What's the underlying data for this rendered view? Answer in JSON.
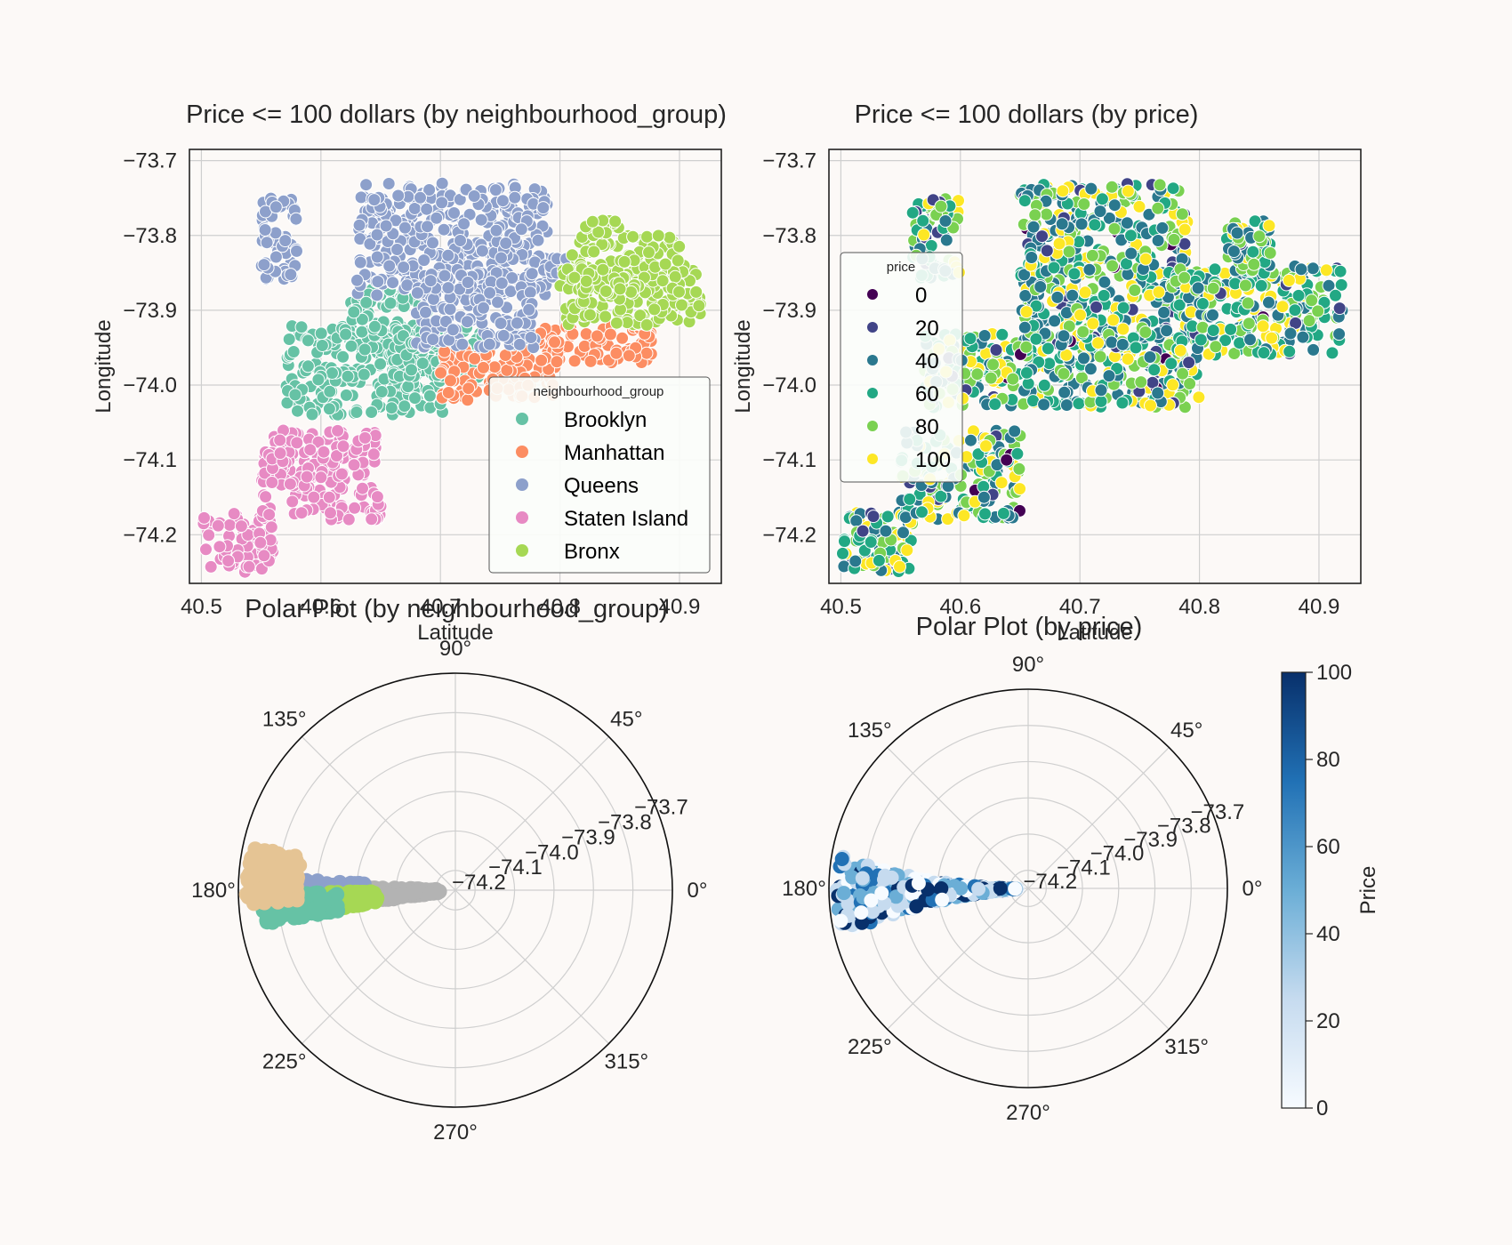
{
  "figure": {
    "background": "#fcf9f7"
  },
  "chart_data": [
    {
      "id": "scatter-by-group",
      "type": "scatter",
      "title": "Price <= 100 dollars (by neighbourhood_group)",
      "xlabel": "Latitude",
      "ylabel": "Longitude",
      "xlim": [
        40.49,
        40.935
      ],
      "ylim": [
        -74.265,
        -73.685
      ],
      "xticks": [
        "40.5",
        "40.6",
        "40.7",
        "40.8",
        "40.9"
      ],
      "yticks": [
        "−73.7",
        "−73.8",
        "−73.9",
        "−74.0",
        "−74.1",
        "−74.2"
      ],
      "xtick_values": [
        40.5,
        40.6,
        40.7,
        40.8,
        40.9
      ],
      "ytick_values": [
        -73.7,
        -73.8,
        -73.9,
        -74.0,
        -74.1,
        -74.2
      ],
      "grid": true,
      "legend": {
        "title": "neighbourhood_group",
        "placement": "lower-right"
      },
      "series": [
        {
          "name": "Brooklyn",
          "color": "#66c2a5",
          "regions": [
            [
              40.57,
              40.705,
              -74.04,
              -73.92
            ],
            [
              40.62,
              40.69,
              -73.96,
              -73.87
            ],
            [
              40.66,
              40.74,
              -73.99,
              -73.92
            ]
          ]
        },
        {
          "name": "Manhattan",
          "color": "#fc8d62",
          "regions": [
            [
              40.7,
              40.8,
              -74.02,
              -73.95
            ],
            [
              40.78,
              40.88,
              -73.97,
              -73.92
            ]
          ]
        },
        {
          "name": "Queens",
          "color": "#8da0cb",
          "regions": [
            [
              40.55,
              40.58,
              -73.86,
              -73.75
            ],
            [
              40.63,
              40.79,
              -73.88,
              -73.73
            ],
            [
              40.68,
              40.78,
              -73.95,
              -73.85
            ],
            [
              40.79,
              40.82,
              -73.87,
              -73.83
            ]
          ]
        },
        {
          "name": "Staten Island",
          "color": "#e78ac3",
          "regions": [
            [
              40.5,
              40.56,
              -74.25,
              -74.17
            ],
            [
              40.55,
              40.65,
              -74.18,
              -74.06
            ]
          ]
        },
        {
          "name": "Bronx",
          "color": "#a6d854",
          "regions": [
            [
              40.8,
              40.92,
              -73.92,
              -73.84
            ],
            [
              40.81,
              40.9,
              -73.88,
              -73.8
            ],
            [
              40.82,
              40.85,
              -73.8,
              -73.78
            ]
          ]
        }
      ]
    },
    {
      "id": "scatter-by-price",
      "type": "scatter",
      "title": "Price <= 100 dollars (by price)",
      "xlabel": "Latitude",
      "ylabel": "Longitude",
      "xlim": [
        40.49,
        40.935
      ],
      "ylim": [
        -74.265,
        -73.685
      ],
      "xticks": [
        "40.5",
        "40.6",
        "40.7",
        "40.8",
        "40.9"
      ],
      "yticks": [
        "−73.7",
        "−73.8",
        "−73.9",
        "−74.0",
        "−74.1",
        "−74.2"
      ],
      "xtick_values": [
        40.5,
        40.6,
        40.7,
        40.8,
        40.9
      ],
      "ytick_values": [
        -73.7,
        -73.8,
        -73.9,
        -74.0,
        -74.1,
        -74.2
      ],
      "grid": true,
      "legend": {
        "title": "price",
        "placement": "center-left",
        "entries": [
          {
            "label": "0",
            "color": "#440154"
          },
          {
            "label": "20",
            "color": "#414487"
          },
          {
            "label": "40",
            "color": "#2a788e"
          },
          {
            "label": "60",
            "color": "#22a884"
          },
          {
            "label": "80",
            "color": "#7ad151"
          },
          {
            "label": "100",
            "color": "#fde725"
          }
        ]
      },
      "palette": [
        "#440154",
        "#414487",
        "#2a788e",
        "#22a884",
        "#7ad151",
        "#fde725"
      ],
      "regions": [
        [
          40.5,
          40.56,
          -74.25,
          -74.17
        ],
        [
          40.55,
          40.65,
          -74.18,
          -74.06
        ],
        [
          40.57,
          40.8,
          -74.03,
          -73.93
        ],
        [
          40.65,
          40.79,
          -73.95,
          -73.73
        ],
        [
          40.56,
          40.6,
          -73.86,
          -73.75
        ],
        [
          40.78,
          40.92,
          -73.96,
          -73.84
        ],
        [
          40.82,
          40.86,
          -73.84,
          -73.78
        ]
      ]
    },
    {
      "id": "polar-by-group",
      "type": "scatter",
      "projection": "polar",
      "title": "Polar Plot (by neighbourhood_group)",
      "angle_ticks": [
        "0°",
        "45°",
        "90°",
        "135°",
        "180°",
        "225°",
        "270°",
        "315°"
      ],
      "radial_ticks": [
        "−74.2",
        "−74.1",
        "−74.0",
        "−73.9",
        "−73.8",
        "−73.7"
      ],
      "rlim": [
        -74.25,
        -73.7
      ],
      "series": [
        {
          "color": "#b3b3b3",
          "theta_deg": [
            178,
            188
          ],
          "r": [
            -74.21,
            -74.02
          ]
        },
        {
          "color": "#8da0cb",
          "theta_deg": [
            176,
            188
          ],
          "r": [
            -74.02,
            -73.81
          ]
        },
        {
          "color": "#a6d854",
          "theta_deg": [
            181,
            189
          ],
          "r": [
            -74.05,
            -73.93
          ]
        },
        {
          "color": "#66c2a5",
          "theta_deg": [
            181,
            190
          ],
          "r": [
            -73.95,
            -73.76
          ]
        },
        {
          "color": "#e5c494",
          "theta_deg": [
            168,
            184
          ],
          "r": [
            -73.85,
            -73.72
          ]
        }
      ]
    },
    {
      "id": "polar-by-price",
      "type": "scatter",
      "projection": "polar",
      "title": "Polar Plot (by price)",
      "angle_ticks": [
        "0°",
        "45°",
        "90°",
        "135°",
        "180°",
        "225°",
        "270°",
        "315°"
      ],
      "radial_ticks": [
        "−74.2",
        "−74.1",
        "−74.0",
        "−73.9",
        "−73.8",
        "−73.7"
      ],
      "rlim": [
        -74.25,
        -73.7
      ],
      "colorbar": {
        "label": "Price",
        "ticks": [
          "0",
          "20",
          "40",
          "60",
          "80",
          "100"
        ],
        "range": [
          0,
          100
        ],
        "cmap": [
          "#f7fbff",
          "#c6dbef",
          "#6baed6",
          "#2171b5",
          "#08306b"
        ]
      },
      "region": {
        "theta_deg": [
          172,
          192
        ],
        "r": [
          -74.22,
          -73.72
        ]
      }
    }
  ]
}
